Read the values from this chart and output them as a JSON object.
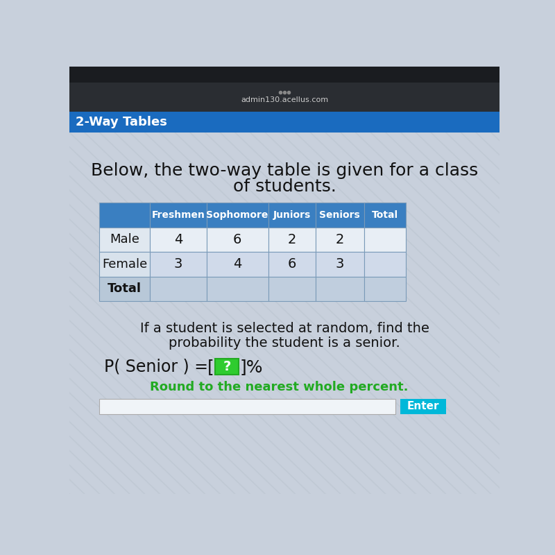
{
  "title_line1": "Below, the two-way table is given for a class",
  "title_line2": "of students.",
  "col_headers": [
    "",
    "Freshmen",
    "Sophomore",
    "Juniors",
    "Seniors",
    "Total"
  ],
  "row_labels": [
    "Male",
    "Female",
    "Total"
  ],
  "table_data": [
    [
      "4",
      "6",
      "2",
      "2",
      ""
    ],
    [
      "3",
      "4",
      "6",
      "3",
      ""
    ],
    [
      "",
      "",
      "",
      "",
      ""
    ]
  ],
  "question_line1": "If a student is selected at random, find the",
  "question_line2": "probability the student is a senior.",
  "note": "Round to the nearest whole percent.",
  "enter_label": "Enter",
  "header_row_color": "#3a7fc1",
  "header_text_color": "#ffffff",
  "male_row_color": "#e8eef5",
  "female_row_color": "#d0daea",
  "total_row_color": "#c0cede",
  "label_col_color": "#c8d4e0",
  "total_label_color": "#b8c8d8",
  "note_color": "#22aa22",
  "enter_bg": "#00b8d9",
  "enter_text": "#ffffff",
  "blue_header_color": "#1a6bbf",
  "page_bg": "#c8d0dc",
  "stripe_color": "#bbc5d0",
  "browser_dark": "#2a2d32",
  "browser_mid": "#3a3d42",
  "url_color": "#cccccc",
  "top_dark": "#1a1c20"
}
